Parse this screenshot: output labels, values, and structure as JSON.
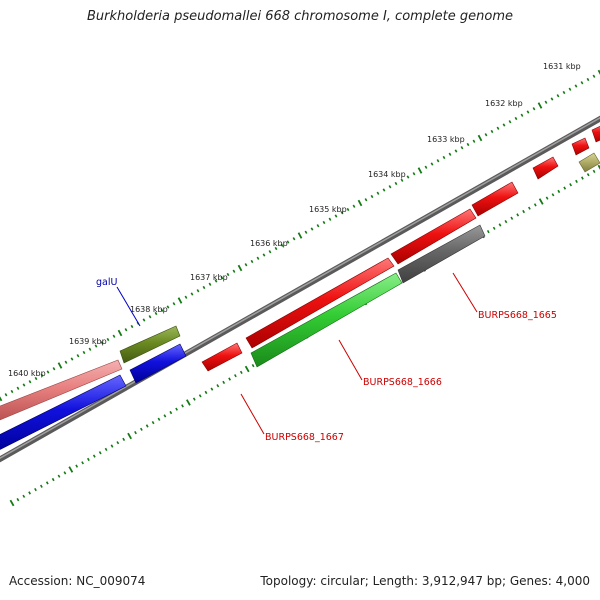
{
  "header": {
    "title": "Burkholderia pseudomallei 668 chromosome I, complete genome"
  },
  "footer": {
    "accession": "Accession: NC_009074",
    "summary": "Topology: circular; Length: 3,912,947 bp; Genes: 4,000"
  },
  "ruler": {
    "labels": [
      "1631 kbp",
      "1632 kbp",
      "1633 kbp",
      "1634 kbp",
      "1635 kbp",
      "1636 kbp",
      "1637 kbp",
      "1638 kbp",
      "1639 kbp",
      "1640 kbp"
    ]
  },
  "gene_labels": {
    "galU": "galU",
    "b1665": "BURPS668_1665",
    "b1666": "BURPS668_1666",
    "b1667": "BURPS668_1667"
  },
  "colors": {
    "ruler_tick": "#137a13",
    "backbone": "#7a7a7a",
    "red_gene": "#ee1111",
    "green_gene": "#33cc33",
    "blue_gene": "#1111dd",
    "pink_gene": "#e88080",
    "olive_gene": "#6b8a22",
    "gray_gene": "#666666",
    "khaki_gene": "#b3b06a",
    "label_red": "#cc0000",
    "label_blue": "#0000aa"
  }
}
